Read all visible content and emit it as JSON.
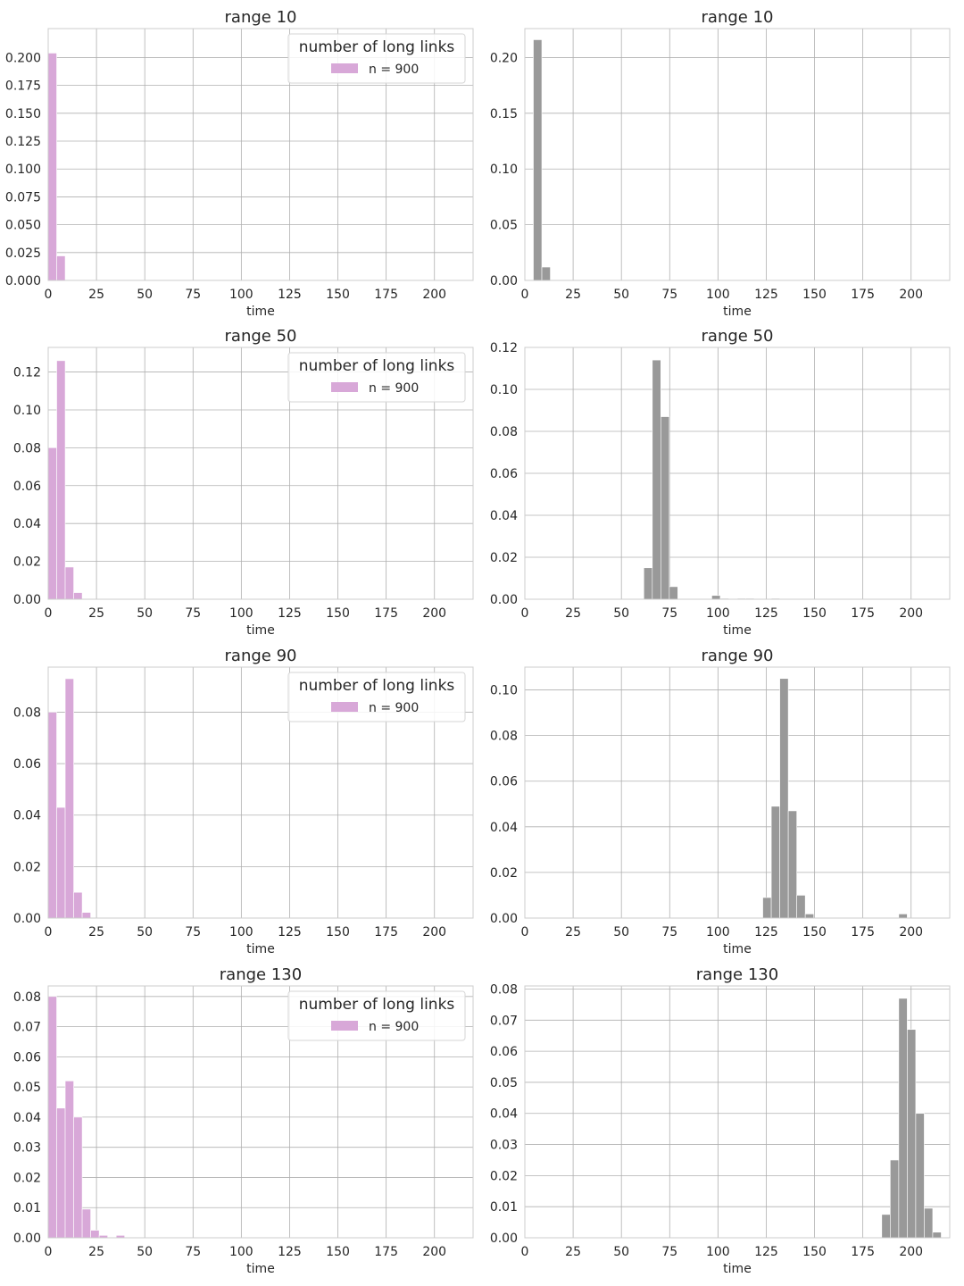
{
  "colors": {
    "left_bars": "#d8a8d8",
    "right_bars": "#999999",
    "grid": "#b0b0b0",
    "frame": "#cccccc",
    "text": "#262626",
    "background": "#ffffff"
  },
  "shared": {
    "xlabel": "time",
    "xticks": [
      0,
      25,
      50,
      75,
      100,
      125,
      150,
      175,
      200
    ],
    "xlim": [
      0,
      220
    ],
    "bin_width": 4.4,
    "legend": {
      "title": "number of long links",
      "entry": "n = 900",
      "placement": "top-right"
    }
  },
  "chart_data": [
    {
      "id": "range10_left",
      "type": "bar",
      "title": "range 10",
      "xlabel": "time",
      "ylabel": "",
      "ylim": [
        0,
        0.226
      ],
      "yticks": [
        "0.000",
        "0.025",
        "0.050",
        "0.075",
        "0.100",
        "0.125",
        "0.150",
        "0.175",
        "0.200"
      ],
      "grid": true,
      "legend": true,
      "series": [
        {
          "name": "n = 900",
          "color": "#d8a8d8",
          "bins": [
            [
              0,
              0.204
            ],
            [
              4.4,
              0.022
            ]
          ]
        }
      ]
    },
    {
      "id": "range10_right",
      "type": "bar",
      "title": "range 10",
      "xlabel": "time",
      "ylabel": "",
      "ylim": [
        0,
        0.226
      ],
      "yticks": [
        "0.00",
        "0.05",
        "0.10",
        "0.15",
        "0.20"
      ],
      "grid": true,
      "legend": false,
      "series": [
        {
          "color": "#999999",
          "bins": [
            [
              4.4,
              0.216
            ],
            [
              8.8,
              0.012
            ]
          ]
        }
      ]
    },
    {
      "id": "range50_left",
      "type": "bar",
      "title": "range 50",
      "xlabel": "time",
      "ylabel": "",
      "ylim": [
        0,
        0.133
      ],
      "yticks": [
        "0.00",
        "0.02",
        "0.04",
        "0.06",
        "0.08",
        "0.10",
        "0.12"
      ],
      "grid": true,
      "legend": true,
      "series": [
        {
          "name": "n = 900",
          "color": "#d8a8d8",
          "bins": [
            [
              0,
              0.08
            ],
            [
              4.4,
              0.126
            ],
            [
              8.8,
              0.017
            ],
            [
              13.2,
              0.0035
            ]
          ]
        }
      ]
    },
    {
      "id": "range50_right",
      "type": "bar",
      "title": "range 50",
      "xlabel": "time",
      "ylabel": "",
      "ylim": [
        0,
        0.12
      ],
      "yticks": [
        "0.00",
        "0.02",
        "0.04",
        "0.06",
        "0.08",
        "0.10",
        "0.12"
      ],
      "grid": true,
      "legend": false,
      "series": [
        {
          "color": "#999999",
          "bins": [
            [
              61.6,
              0.015
            ],
            [
              66.0,
              0.114
            ],
            [
              70.4,
              0.087
            ],
            [
              74.8,
              0.006
            ],
            [
              96.8,
              0.0018
            ],
            [
              101.2,
              0.0004
            ],
            [
              110.0,
              0.0004
            ],
            [
              114.4,
              0.0004
            ],
            [
              127.6,
              0.0004
            ]
          ]
        }
      ]
    },
    {
      "id": "range90_left",
      "type": "bar",
      "title": "range 90",
      "xlabel": "time",
      "ylabel": "",
      "ylim": [
        0,
        0.0975
      ],
      "yticks": [
        "0.00",
        "0.02",
        "0.04",
        "0.06",
        "0.08"
      ],
      "grid": true,
      "legend": true,
      "series": [
        {
          "name": "n = 900",
          "color": "#d8a8d8",
          "bins": [
            [
              0,
              0.08
            ],
            [
              4.4,
              0.043
            ],
            [
              8.8,
              0.093
            ],
            [
              13.2,
              0.01
            ],
            [
              17.6,
              0.0022
            ]
          ]
        }
      ]
    },
    {
      "id": "range90_right",
      "type": "bar",
      "title": "range 90",
      "xlabel": "time",
      "ylabel": "",
      "ylim": [
        0,
        0.11
      ],
      "yticks": [
        "0.00",
        "0.02",
        "0.04",
        "0.06",
        "0.08",
        "0.10"
      ],
      "grid": true,
      "legend": false,
      "series": [
        {
          "color": "#999999",
          "bins": [
            [
              123.2,
              0.009
            ],
            [
              127.6,
              0.049
            ],
            [
              132.0,
              0.105
            ],
            [
              136.4,
              0.047
            ],
            [
              140.8,
              0.01
            ],
            [
              145.2,
              0.0018
            ],
            [
              193.6,
              0.0018
            ]
          ]
        }
      ]
    },
    {
      "id": "range130_left",
      "type": "bar",
      "title": "range 130",
      "xlabel": "time",
      "ylabel": "",
      "ylim": [
        0,
        0.0835
      ],
      "yticks": [
        "0.00",
        "0.01",
        "0.02",
        "0.03",
        "0.04",
        "0.05",
        "0.06",
        "0.07",
        "0.08"
      ],
      "grid": true,
      "legend": true,
      "series": [
        {
          "name": "n = 900",
          "color": "#d8a8d8",
          "bins": [
            [
              0,
              0.08
            ],
            [
              4.4,
              0.043
            ],
            [
              8.8,
              0.052
            ],
            [
              13.2,
              0.04
            ],
            [
              17.6,
              0.0095
            ],
            [
              22.0,
              0.0025
            ],
            [
              26.4,
              0.0008
            ],
            [
              35.2,
              0.0008
            ]
          ]
        }
      ]
    },
    {
      "id": "range130_right",
      "type": "bar",
      "title": "range 130",
      "xlabel": "time",
      "ylabel": "",
      "ylim": [
        0,
        0.081
      ],
      "yticks": [
        "0.00",
        "0.01",
        "0.02",
        "0.03",
        "0.04",
        "0.05",
        "0.06",
        "0.07",
        "0.08"
      ],
      "grid": true,
      "legend": false,
      "series": [
        {
          "color": "#999999",
          "bins": [
            [
              184.8,
              0.0075
            ],
            [
              189.2,
              0.025
            ],
            [
              193.6,
              0.077
            ],
            [
              198.0,
              0.067
            ],
            [
              202.4,
              0.04
            ],
            [
              206.8,
              0.0095
            ],
            [
              211.2,
              0.0018
            ]
          ]
        }
      ]
    }
  ]
}
